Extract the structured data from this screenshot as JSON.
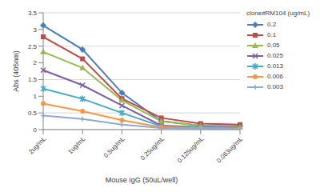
{
  "chart_data": {
    "type": "line",
    "x_label": "Mouse IgG (50uL/well)",
    "y_label": "Abs (405nm)",
    "legend_title": "clone#RM104 (ug/mL)",
    "categories": [
      "2ug/mL",
      "1ug/mL",
      "0.5ug/mL",
      "0.25ug/mL",
      "0.125ug/mL",
      "0.063ug/mL"
    ],
    "series": [
      {
        "name": "0.2",
        "color": "#4a7ebb",
        "marker": "diamond",
        "values": [
          3.12,
          2.4,
          1.1,
          0.25,
          0.12,
          0.1
        ]
      },
      {
        "name": "0.1",
        "color": "#be4b48",
        "marker": "square",
        "values": [
          2.78,
          2.12,
          0.93,
          0.35,
          0.18,
          0.15
        ]
      },
      {
        "name": "0.05",
        "color": "#98b954",
        "marker": "triangle",
        "values": [
          2.33,
          1.85,
          0.88,
          0.25,
          0.12,
          0.08
        ]
      },
      {
        "name": "0.025",
        "color": "#7d60a0",
        "marker": "x",
        "values": [
          1.78,
          1.33,
          0.72,
          0.12,
          0.08,
          0.05
        ]
      },
      {
        "name": "0.013",
        "color": "#46aac5",
        "marker": "star",
        "values": [
          1.23,
          0.92,
          0.5,
          0.1,
          0.06,
          0.04
        ]
      },
      {
        "name": "0.006",
        "color": "#f79646",
        "marker": "circle",
        "values": [
          0.78,
          0.55,
          0.28,
          0.07,
          0.05,
          0.03
        ]
      },
      {
        "name": "0.003",
        "color": "#92a9cf",
        "marker": "plus",
        "values": [
          0.42,
          0.32,
          0.15,
          0.05,
          0.03,
          0.02
        ]
      }
    ],
    "ylim": [
      0,
      3.5
    ],
    "yticks": [
      0,
      0.5,
      1,
      1.5,
      2,
      2.5,
      3,
      3.5
    ],
    "grid": true,
    "legend": "right"
  }
}
